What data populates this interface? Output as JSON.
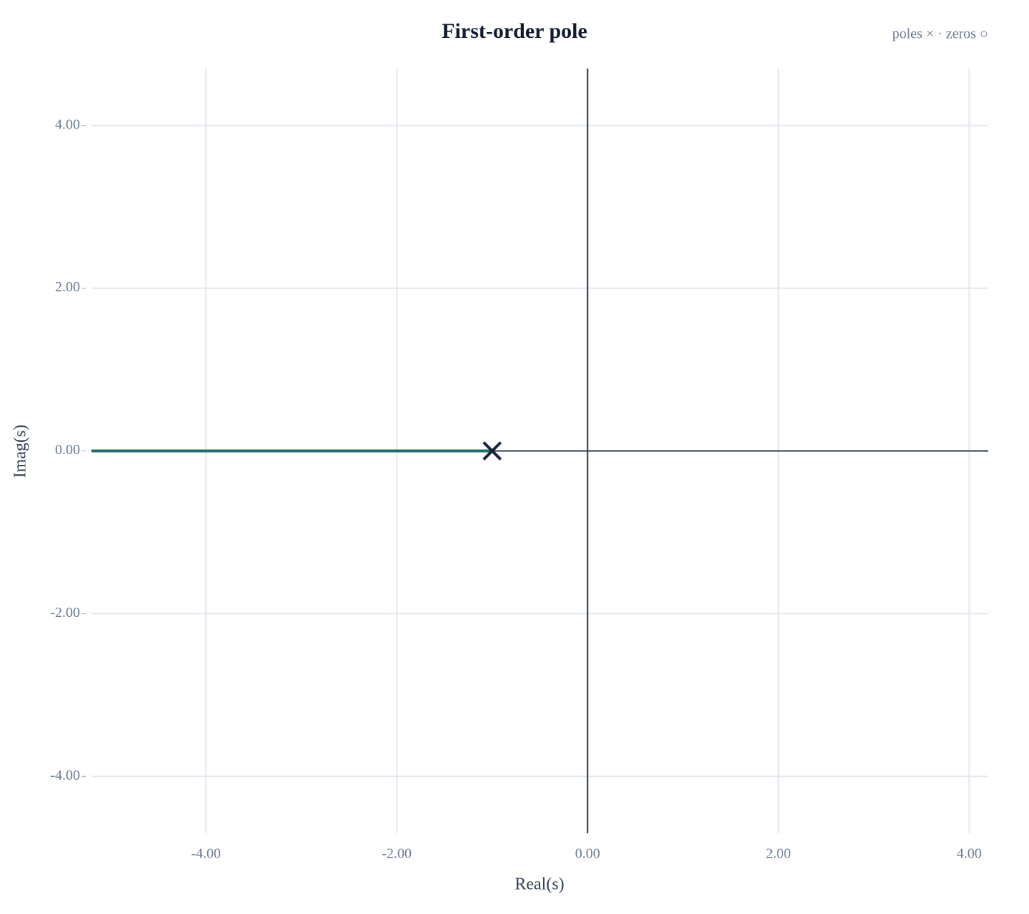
{
  "chart_data": {
    "type": "root-locus",
    "title": "First-order pole",
    "legend_note": "poles × · zeros ○",
    "x_label": "Real(s)",
    "y_label": "Imag(s)",
    "xlim": [
      -5.2,
      4.2
    ],
    "ylim": [
      -4.7,
      4.7
    ],
    "xticks": [
      {
        "value": -4,
        "label": "-4.00"
      },
      {
        "value": -2,
        "label": "-2.00"
      },
      {
        "value": 0,
        "label": "0.00"
      },
      {
        "value": 2,
        "label": "2.00"
      },
      {
        "value": 4,
        "label": "4.00"
      }
    ],
    "yticks": [
      {
        "value": -4,
        "label": "-4.00"
      },
      {
        "value": -2,
        "label": "-2.00"
      },
      {
        "value": 0,
        "label": "0.00"
      },
      {
        "value": 2,
        "label": "2.00"
      },
      {
        "value": 4,
        "label": "4.00"
      }
    ],
    "grid": true,
    "branches": [
      {
        "color": "#1b6f6a",
        "x": [
          -1,
          -5.2
        ],
        "y": [
          0,
          0
        ]
      }
    ],
    "poles": {
      "color": "#17223b",
      "x": [
        -1
      ],
      "y": [
        0
      ]
    }
  }
}
